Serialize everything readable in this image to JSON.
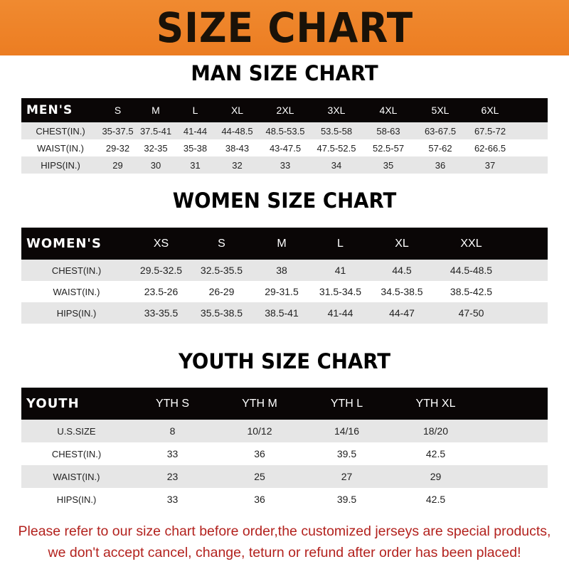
{
  "banner_title": "SIZE CHART",
  "men": {
    "title": "MAN SIZE CHART",
    "header": [
      "MEN'S",
      "S",
      "M",
      "L",
      "XL",
      "2XL",
      "3XL",
      "4XL",
      "5XL",
      "6XL"
    ],
    "rows": [
      [
        "CHEST(IN.)",
        "35-37.5",
        "37.5-41",
        "41-44",
        "44-48.5",
        "48.5-53.5",
        "53.5-58",
        "58-63",
        "63-67.5",
        "67.5-72"
      ],
      [
        "WAIST(IN.)",
        "29-32",
        "32-35",
        "35-38",
        "38-43",
        "43-47.5",
        "47.5-52.5",
        "52.5-57",
        "57-62",
        "62-66.5"
      ],
      [
        "HIPS(IN.)",
        "29",
        "30",
        "31",
        "32",
        "33",
        "34",
        "35",
        "36",
        "37"
      ]
    ]
  },
  "women": {
    "title": "WOMEN SIZE CHART",
    "header": [
      "WOMEN'S",
      "XS",
      "S",
      "M",
      "L",
      "XL",
      "XXL"
    ],
    "rows": [
      [
        "CHEST(IN.)",
        "29.5-32.5",
        "32.5-35.5",
        "38",
        "41",
        "44.5",
        "44.5-48.5"
      ],
      [
        "WAIST(IN.)",
        "23.5-26",
        "26-29",
        "29-31.5",
        "31.5-34.5",
        "34.5-38.5",
        "38.5-42.5"
      ],
      [
        "HIPS(IN.)",
        "33-35.5",
        "35.5-38.5",
        "38.5-41",
        "41-44",
        "44-47",
        "47-50"
      ]
    ]
  },
  "youth": {
    "title": "YOUTH SIZE CHART",
    "header": [
      "YOUTH",
      "YTH S",
      "YTH M",
      "YTH L",
      "YTH XL"
    ],
    "rows": [
      [
        "U.S.SIZE",
        "8",
        "10/12",
        "14/16",
        "18/20"
      ],
      [
        "CHEST(IN.)",
        "33",
        "36",
        "39.5",
        "42.5"
      ],
      [
        "WAIST(IN.)",
        "23",
        "25",
        "27",
        "29"
      ],
      [
        "HIPS(IN.)",
        "33",
        "36",
        "39.5",
        "42.5"
      ]
    ]
  },
  "note": [
    "Please refer to our size chart before order,the customized jerseys are special products,",
    "we don't accept cancel, change, teturn or refund after order has been placed!"
  ],
  "colors": {
    "banner": "#ec7d22",
    "header_row": "#0a0606",
    "stripe": "#e6e6e6",
    "note": "#b3221e"
  }
}
